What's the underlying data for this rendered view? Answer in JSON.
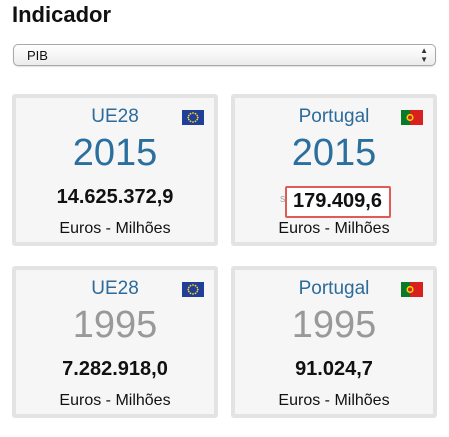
{
  "heading": "Indicador",
  "indicator_select": {
    "selected": "PIB"
  },
  "cards": [
    {
      "region": "UE28",
      "flag": "eu-flag-icon",
      "year": "2015",
      "value": "14.625.372,9",
      "unit": "Euros - Milhões"
    },
    {
      "region": "Portugal",
      "flag": "pt-flag-icon",
      "year": "2015",
      "value": "179.409,6",
      "unit": "Euros - Milhões",
      "ghost": "s"
    },
    {
      "region": "UE28",
      "flag": "eu-flag-icon",
      "year": "1995",
      "value": "7.282.918,0",
      "unit": "Euros - Milhões"
    },
    {
      "region": "Portugal",
      "flag": "pt-flag-icon",
      "year": "1995",
      "value": "91.024,7",
      "unit": "Euros - Milhões"
    }
  ],
  "colors": {
    "region_text": "#2c6b9b",
    "current_year": "#2b6f9e",
    "past_year": "#999999",
    "highlight_border": "#e15b55"
  }
}
